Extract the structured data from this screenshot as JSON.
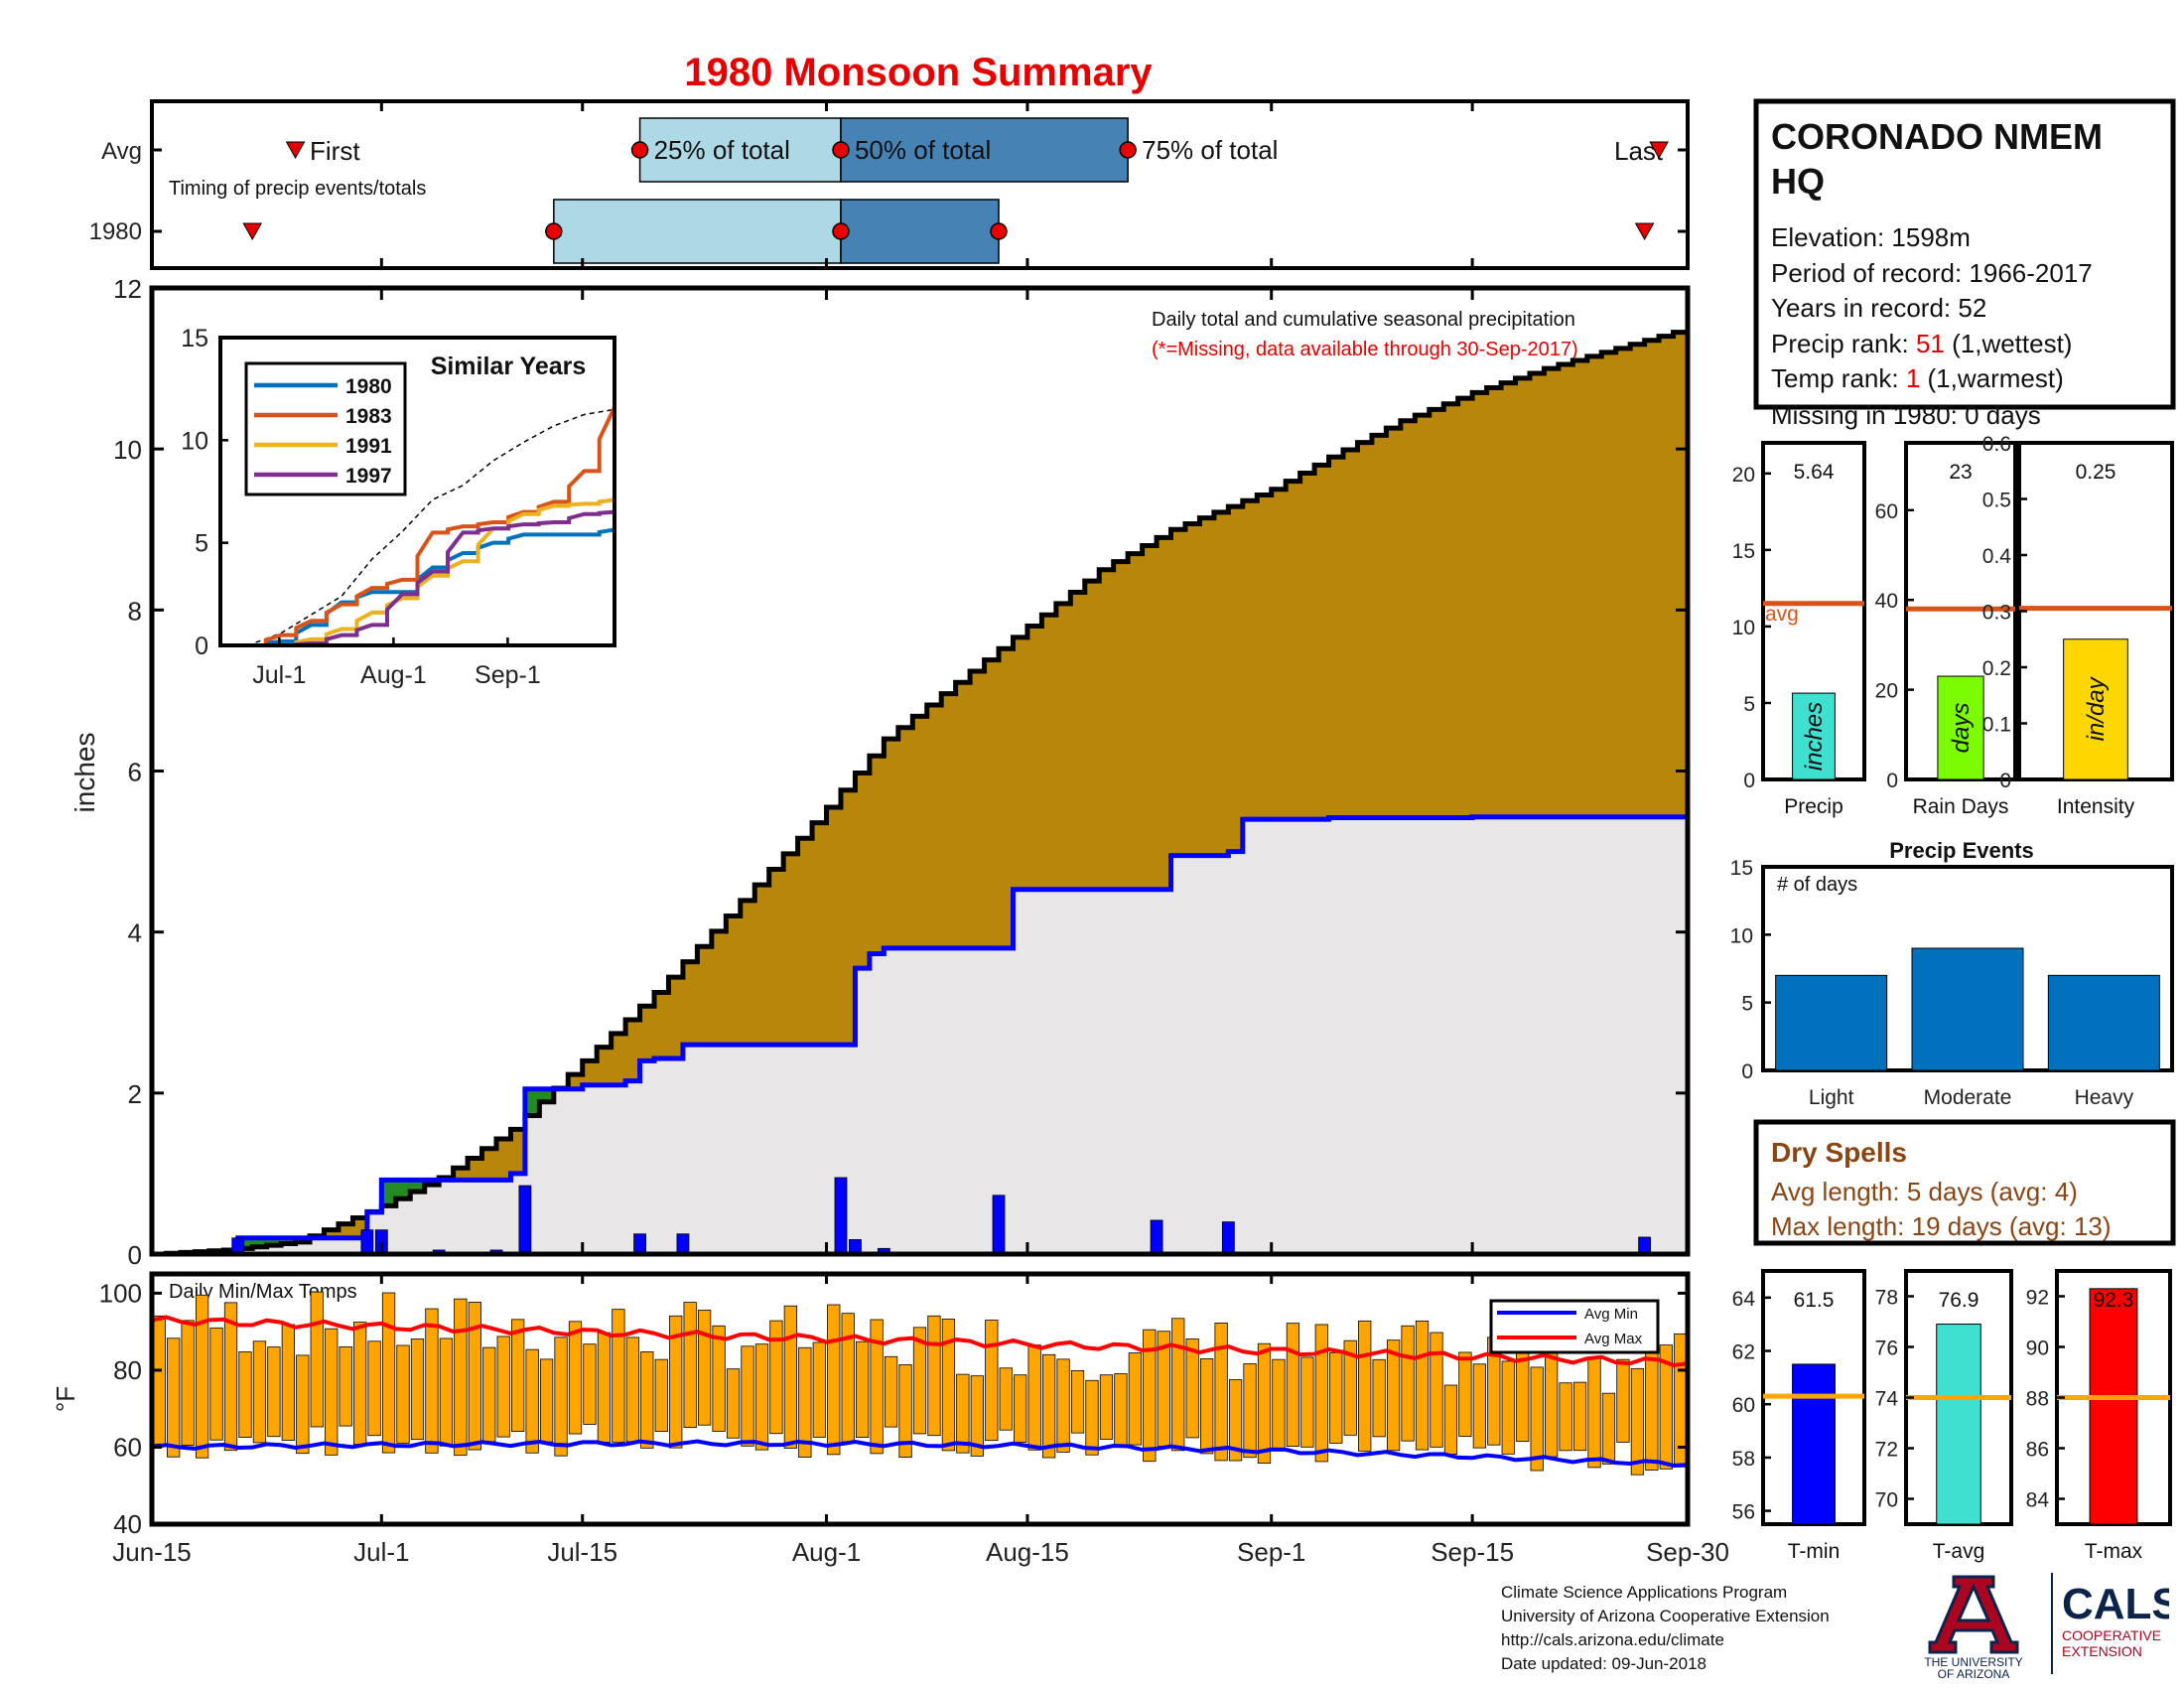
{
  "title": "1980 Monsoon Summary",
  "timing": {
    "row_labels": [
      "Avg",
      "1980"
    ],
    "note": "Timing of precip events/totals",
    "first_label": "First",
    "last_label": "Last",
    "pct25_label": "25% of total",
    "pct50_label": "50% of total",
    "pct75_label": "75% of total",
    "avg": {
      "first": "Jun-25",
      "p25": "Jul-19",
      "p50": "Aug-2",
      "p75": "Aug-22",
      "last": "Sep-28"
    },
    "year": {
      "first": "Jun-22",
      "p25": "Jul-13",
      "p50": "Aug-2",
      "p75": "Aug-13",
      "last": "Sep-27"
    }
  },
  "station": {
    "name": "CORONADO NMEM HQ",
    "elevation_label": "Elevation: 1598m",
    "period_label": "Period of record: 1966-2017",
    "years_label": "Years in record: 52",
    "precip_rank_prefix": "Precip rank: ",
    "precip_rank_value": "51",
    "precip_rank_suffix": " (1,wettest)",
    "temp_rank_prefix": "Temp rank: ",
    "temp_rank_value": "1",
    "temp_rank_suffix": " (1,warmest)",
    "missing_label": "Missing in 1980: 0 days"
  },
  "main": {
    "legend_line1": "Daily total and cumulative seasonal precipitation",
    "legend_line2": "(*=Missing, data available through 30-Sep-2017)",
    "ylabel": "inches",
    "yticks": [
      "0",
      "2",
      "4",
      "6",
      "8",
      "10",
      "12"
    ],
    "xticks": [
      "Jun-15",
      "Jul-1",
      "Jul-15",
      "Aug-1",
      "Aug-15",
      "Sep-1",
      "Sep-15",
      "Sep-30"
    ]
  },
  "inset": {
    "title": "Similar Years",
    "legend": [
      "1980",
      "1983",
      "1991",
      "1997"
    ],
    "yticks": [
      "0",
      "5",
      "10",
      "15"
    ],
    "xticks": [
      "Jul-1",
      "Aug-1",
      "Sep-1"
    ]
  },
  "temps": {
    "title": "Daily Min/Max Temps",
    "ylabel": "°F",
    "yticks": [
      "40",
      "60",
      "80",
      "100"
    ],
    "legend": [
      "Avg Min",
      "Avg Max"
    ]
  },
  "stats": {
    "precip": {
      "value_label": "5.64",
      "unit": "inches",
      "xlabel": "Precip",
      "avg_label": "avg",
      "yticks": [
        "0",
        "5",
        "10",
        "15",
        "20"
      ]
    },
    "raindays": {
      "value_label": "23",
      "unit": "days",
      "xlabel": "Rain Days",
      "yticks": [
        "0",
        "20",
        "40",
        "60"
      ]
    },
    "intensity": {
      "value_label": "0.25",
      "unit": "in/day",
      "xlabel": "Intensity",
      "yticks": [
        "0",
        "0.1",
        "0.2",
        "0.3",
        "0.4",
        "0.5",
        "0.6"
      ]
    }
  },
  "events": {
    "title": "Precip Events",
    "ylabel": "# of days",
    "categories": [
      "Light",
      "Moderate",
      "Heavy"
    ],
    "yticks": [
      "0",
      "5",
      "10",
      "15"
    ]
  },
  "dry_spells": {
    "title": "Dry Spells",
    "avg_line": "Avg length: 5 days (avg: 4)",
    "max_line": "Max length: 19 days (avg: 13)"
  },
  "temp_stats": {
    "tmin": {
      "value_label": "61.5",
      "xlabel": "T-min",
      "yticks": [
        "56",
        "58",
        "60",
        "62",
        "64"
      ]
    },
    "tavg": {
      "value_label": "76.9",
      "xlabel": "T-avg",
      "yticks": [
        "70",
        "72",
        "74",
        "76",
        "78"
      ]
    },
    "tmax": {
      "value_label": "92.3",
      "xlabel": "T-max",
      "yticks": [
        "84",
        "86",
        "88",
        "90",
        "92"
      ]
    }
  },
  "footer": {
    "line1": "Climate Science Applications Program",
    "line2": "University of Arizona Cooperative Extension",
    "line3": "http://cals.arizona.edu/climate",
    "line4": " Date updated: 09-Jun-2018",
    "ua_line1": "THE UNIVERSITY",
    "ua_line2": "OF ARIZONA",
    "cals_title": "CALS",
    "cals_line1": "COOPERATIVE",
    "cals_line2": "EXTENSION"
  },
  "colors": {
    "title": "#e60000",
    "cumulative_avg": "#b8860b",
    "cumulative_year_line": "#0000ff",
    "daily_bars": "#0000ff",
    "temp_bars": "#ffa500",
    "avg_min": "#0000ff",
    "avg_max": "#ff0000",
    "timing_light": "#add8e6",
    "timing_dark": "#4682b4",
    "precip_bar": "#40e0d0",
    "raindays_bar": "#7cfc00",
    "intensity_bar": "#ffd700",
    "avg_line": "#d95319",
    "events_bar": "#0072bd",
    "dry_spells": "#8b4513",
    "tmin_bar": "#0000ff",
    "tavg_bar": "#40e0d0",
    "tmax_bar": "#ff0000",
    "temp_avg_line": "#ffa500"
  },
  "chart_data": [
    {
      "type": "area",
      "title": "Daily total and cumulative seasonal precipitation",
      "ylabel": "inches",
      "ylim": [
        0,
        12
      ],
      "x_range": [
        "Jun-15",
        "Sep-30"
      ],
      "series": [
        {
          "name": "avg",
          "x": [
            "Jun-15",
            "Jun-20",
            "Jun-25",
            "Jul-1",
            "Jul-5",
            "Jul-10",
            "Jul-15",
            "Jul-20",
            "Jul-25",
            "Aug-1",
            "Aug-5",
            "Aug-10",
            "Aug-15",
            "Aug-20",
            "Aug-25",
            "Sep-1",
            "Sep-5",
            "Sep-10",
            "Sep-15",
            "Sep-20",
            "Sep-25",
            "Sep-30"
          ],
          "values": [
            0,
            0.05,
            0.15,
            0.6,
            0.95,
            1.55,
            2.4,
            3.25,
            4.2,
            5.55,
            6.4,
            7.1,
            7.8,
            8.5,
            9.0,
            9.5,
            9.9,
            10.35,
            10.7,
            11.0,
            11.25,
            11.5
          ]
        },
        {
          "name": "1980",
          "x": [
            "Jun-15",
            "Jun-20",
            "Jun-21",
            "Jun-25",
            "Jun-30",
            "Jul-1",
            "Jul-5",
            "Jul-10",
            "Jul-11",
            "Jul-15",
            "Jul-18",
            "Jul-19",
            "Jul-20",
            "Jul-22",
            "Aug-2",
            "Aug-3",
            "Aug-4",
            "Aug-5",
            "Aug-13",
            "Aug-14",
            "Aug-24",
            "Aug-25",
            "Aug-29",
            "Aug-30",
            "Sep-5",
            "Sep-15",
            "Sep-27",
            "Sep-30"
          ],
          "values": [
            0,
            0,
            0.2,
            0.2,
            0.52,
            0.92,
            0.92,
            1.0,
            2.05,
            2.1,
            2.15,
            2.4,
            2.43,
            2.6,
            2.6,
            3.55,
            3.73,
            3.8,
            3.8,
            4.53,
            4.53,
            4.95,
            5.0,
            5.4,
            5.42,
            5.43,
            5.43,
            5.64
          ]
        }
      ],
      "daily_bars": {
        "x": [
          "Jun-21",
          "Jun-30",
          "Jul-1",
          "Jul-5",
          "Jul-9",
          "Jul-11",
          "Jul-19",
          "Jul-22",
          "Aug-2",
          "Aug-3",
          "Aug-5",
          "Aug-13",
          "Aug-24",
          "Aug-29",
          "Sep-27"
        ],
        "values": [
          0.2,
          0.3,
          0.3,
          0.05,
          0.05,
          0.85,
          0.25,
          0.25,
          0.95,
          0.18,
          0.07,
          0.73,
          0.42,
          0.4,
          0.21
        ]
      }
    },
    {
      "type": "line",
      "title": "Similar Years",
      "ylim": [
        0,
        15
      ],
      "x_range": [
        "Jun-15",
        "Sep-30"
      ],
      "series": [
        {
          "name": "1980",
          "values": [
            0,
            0,
            0.2,
            1.0,
            2.1,
            2.6,
            2.6,
            3.8,
            4.5,
            5.0,
            5.4,
            5.4,
            5.4,
            5.64
          ]
        },
        {
          "name": "1983",
          "values": [
            0,
            0,
            0.5,
            1.2,
            2.0,
            2.8,
            3.2,
            5.5,
            5.8,
            6.0,
            6.5,
            7.0,
            8.5,
            11.6
          ]
        },
        {
          "name": "1991",
          "values": [
            0,
            0,
            0,
            0.3,
            0.8,
            1.6,
            2.3,
            3.4,
            4.1,
            5.7,
            6.4,
            6.8,
            6.9,
            7.1
          ]
        },
        {
          "name": "1997",
          "values": [
            0,
            0,
            0,
            0.1,
            0.5,
            1.0,
            2.5,
            3.6,
            5.5,
            5.7,
            5.9,
            6.0,
            6.4,
            6.5
          ]
        }
      ],
      "avg_dashed": [
        0,
        0.05,
        0.6,
        1.5,
        2.4,
        4.2,
        5.55,
        7.1,
        7.8,
        9.0,
        9.9,
        10.7,
        11.25,
        11.5
      ]
    },
    {
      "type": "bar",
      "title": "Daily Min/Max Temps",
      "ylabel": "°F",
      "ylim": [
        40,
        105
      ],
      "x_range": [
        "Jun-15",
        "Sep-30"
      ],
      "series": [
        {
          "name": "Avg Min",
          "start": 60,
          "end": 54.5
        },
        {
          "name": "Avg Max",
          "start": 92,
          "end": 82
        }
      ]
    },
    {
      "type": "bar",
      "title": "Precip",
      "categories": [
        "Precip"
      ],
      "values": [
        5.64
      ],
      "avg": 11.5,
      "ylim": [
        0,
        22
      ]
    },
    {
      "type": "bar",
      "title": "Rain Days",
      "categories": [
        "Rain Days"
      ],
      "values": [
        23
      ],
      "avg": 38,
      "ylim": [
        0,
        75
      ]
    },
    {
      "type": "bar",
      "title": "Intensity",
      "categories": [
        "Intensity"
      ],
      "values": [
        0.25
      ],
      "avg": 0.305,
      "ylim": [
        0,
        0.6
      ]
    },
    {
      "type": "bar",
      "title": "Precip Events",
      "categories": [
        "Light",
        "Moderate",
        "Heavy"
      ],
      "values": [
        7,
        9,
        7
      ],
      "ylim": [
        0,
        15
      ]
    },
    {
      "type": "bar",
      "title": "T-min",
      "categories": [
        "T-min"
      ],
      "values": [
        61.5
      ],
      "avg": 60.3,
      "ylim": [
        55.5,
        65
      ]
    },
    {
      "type": "bar",
      "title": "T-avg",
      "categories": [
        "T-avg"
      ],
      "values": [
        76.9
      ],
      "avg": 74.0,
      "ylim": [
        69,
        79
      ]
    },
    {
      "type": "bar",
      "title": "T-max",
      "categories": [
        "T-max"
      ],
      "values": [
        92.3
      ],
      "avg": 88.0,
      "ylim": [
        83,
        93
      ]
    }
  ]
}
